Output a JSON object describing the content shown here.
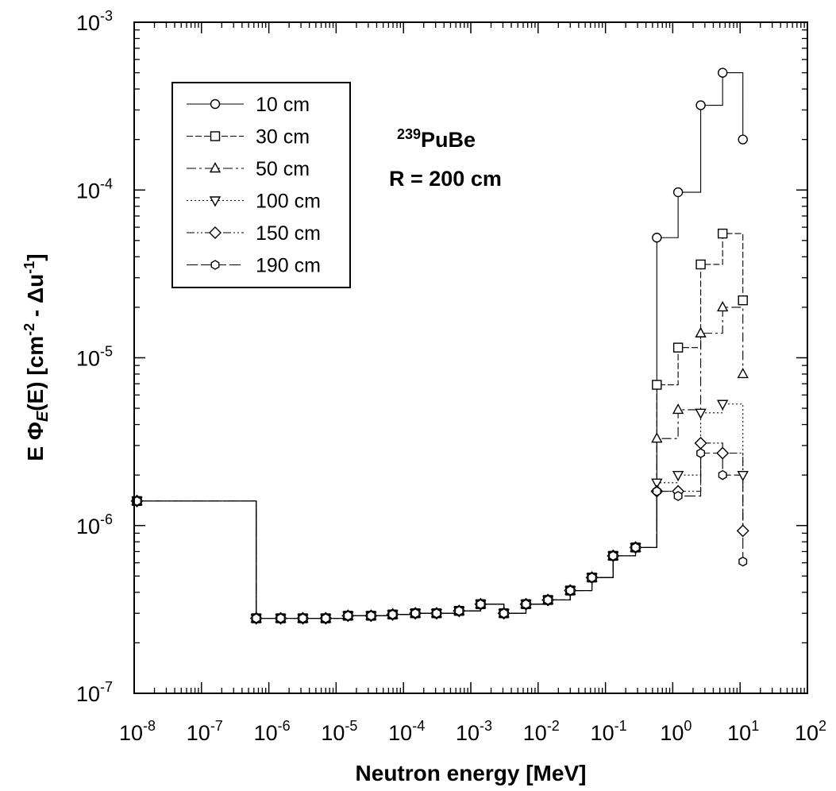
{
  "chart_data": {
    "type": "line",
    "step": true,
    "xlabel": "Neutron energy [MeV]",
    "ylabel": "E Φ_E(E) [cm⁻² - Δu⁻¹]",
    "xscale": "log",
    "yscale": "log",
    "xlim": [
      1e-08,
      100
    ],
    "ylim": [
      1e-07,
      0.001
    ],
    "x_tick_labels": [
      "10-8",
      "10-7",
      "10-6",
      "10-5",
      "10-4",
      "10-3",
      "10-2",
      "10-1",
      "100",
      "101",
      "102"
    ],
    "y_tick_labels": [
      "10-7",
      "10-6",
      "10-5",
      "10-4",
      "10-3"
    ],
    "annotation": {
      "superscript": "239",
      "text": "PuBe",
      "line2": "R = 200 cm"
    },
    "legend_position": "top-left",
    "x": [
      1.1e-08,
      6.5e-07,
      1.5e-06,
      3.2e-06,
      7e-06,
      1.5e-05,
      3.3e-05,
      6.9e-05,
      0.00015,
      0.00031,
      0.00067,
      0.0014,
      0.0031,
      0.0066,
      0.014,
      0.03,
      0.063,
      0.13,
      0.28,
      0.58,
      1.2,
      2.6,
      5.5,
      11
    ],
    "series": [
      {
        "name": "10 cm",
        "marker": "circle",
        "dash": "solid",
        "values": [
          1.4e-06,
          2.8e-07,
          2.8e-07,
          2.8e-07,
          2.8e-07,
          2.9e-07,
          2.9e-07,
          2.95e-07,
          3e-07,
          3e-07,
          3.1e-07,
          3.4e-07,
          3e-07,
          3.4e-07,
          3.6e-07,
          4.1e-07,
          4.9e-07,
          6.6e-07,
          7.4e-07,
          5.2e-05,
          9.7e-05,
          0.00032,
          0.0005,
          0.0002
        ]
      },
      {
        "name": "30 cm",
        "marker": "square",
        "dash": "8,3",
        "values": [
          1.4e-06,
          2.8e-07,
          2.8e-07,
          2.8e-07,
          2.8e-07,
          2.9e-07,
          2.9e-07,
          2.95e-07,
          3e-07,
          3e-07,
          3.1e-07,
          3.4e-07,
          3e-07,
          3.4e-07,
          3.6e-07,
          4.1e-07,
          4.9e-07,
          6.6e-07,
          7.4e-07,
          6.9e-06,
          1.15e-05,
          3.6e-05,
          5.5e-05,
          2.2e-05
        ]
      },
      {
        "name": "50 cm",
        "marker": "triangle-up",
        "dash": "12,4,3,4",
        "values": [
          1.4e-06,
          2.8e-07,
          2.8e-07,
          2.8e-07,
          2.8e-07,
          2.9e-07,
          2.9e-07,
          2.95e-07,
          3e-07,
          3e-07,
          3.1e-07,
          3.4e-07,
          3e-07,
          3.4e-07,
          3.6e-07,
          4.1e-07,
          4.9e-07,
          6.6e-07,
          7.4e-07,
          3.3e-06,
          4.9e-06,
          1.4e-05,
          2e-05,
          8e-06
        ]
      },
      {
        "name": "100 cm",
        "marker": "triangle-down",
        "dash": "2,3",
        "values": [
          1.4e-06,
          2.8e-07,
          2.8e-07,
          2.8e-07,
          2.8e-07,
          2.9e-07,
          2.9e-07,
          2.95e-07,
          3e-07,
          3e-07,
          3.1e-07,
          3.4e-07,
          3e-07,
          3.4e-07,
          3.6e-07,
          4.1e-07,
          4.9e-07,
          6.6e-07,
          7.4e-07,
          1.8e-06,
          2e-06,
          4.7e-06,
          5.3e-06,
          2e-06
        ]
      },
      {
        "name": "150 cm",
        "marker": "diamond",
        "dash": "10,3,2,3,2,3",
        "values": [
          1.4e-06,
          2.8e-07,
          2.8e-07,
          2.8e-07,
          2.8e-07,
          2.9e-07,
          2.9e-07,
          2.95e-07,
          3e-07,
          3e-07,
          3.1e-07,
          3.4e-07,
          3e-07,
          3.4e-07,
          3.6e-07,
          4.1e-07,
          4.9e-07,
          6.6e-07,
          7.4e-07,
          1.6e-06,
          1.6e-06,
          3.1e-06,
          2.7e-06,
          9.3e-07
        ]
      },
      {
        "name": "190 cm",
        "marker": "hexagon",
        "dash": "14,4",
        "values": [
          1.4e-06,
          2.8e-07,
          2.8e-07,
          2.8e-07,
          2.8e-07,
          2.9e-07,
          2.9e-07,
          2.95e-07,
          3e-07,
          3e-07,
          3.1e-07,
          3.4e-07,
          3e-07,
          3.4e-07,
          3.6e-07,
          4.1e-07,
          4.9e-07,
          6.6e-07,
          7.4e-07,
          1.6e-06,
          1.5e-06,
          2.7e-06,
          2e-06,
          6.1e-07
        ]
      }
    ]
  }
}
